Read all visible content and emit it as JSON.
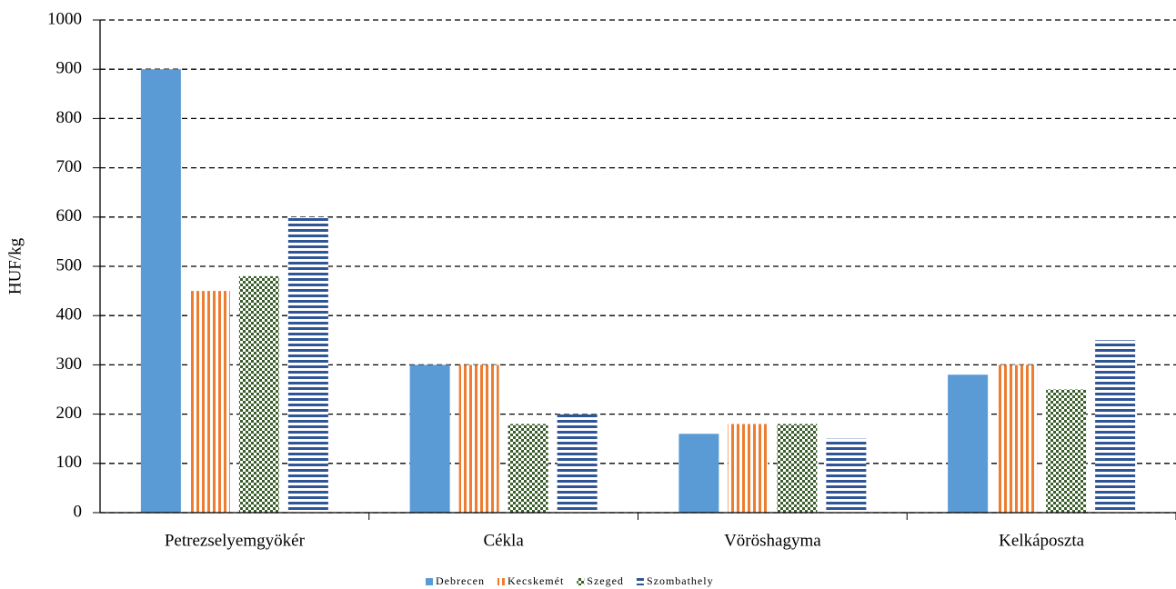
{
  "chart_data": {
    "type": "bar",
    "y_label": "HUF/kg",
    "categories": [
      "Petrezselyemgyökér",
      "Cékla",
      "Vöröshagyma",
      "Kelkáposzta"
    ],
    "series": [
      {
        "name": "Debrecen",
        "color": "#5b9bd5",
        "pattern": "solid",
        "values": [
          900,
          300,
          160,
          280
        ]
      },
      {
        "name": "Kecskemét",
        "color": "#ed7d31",
        "pattern": "vertical",
        "values": [
          450,
          300,
          180,
          300
        ]
      },
      {
        "name": "Szeged",
        "color": "#3a5e2a",
        "pattern": "checker",
        "values": [
          480,
          180,
          180,
          250
        ]
      },
      {
        "name": "Szombathely",
        "color": "#2f5597",
        "pattern": "horizontal",
        "values": [
          600,
          200,
          150,
          350
        ]
      }
    ],
    "ylim": [
      0,
      1000
    ],
    "yticks": [
      0,
      100,
      200,
      300,
      400,
      500,
      600,
      700,
      800,
      900,
      1000
    ],
    "grid": true,
    "legend": "bottom"
  }
}
